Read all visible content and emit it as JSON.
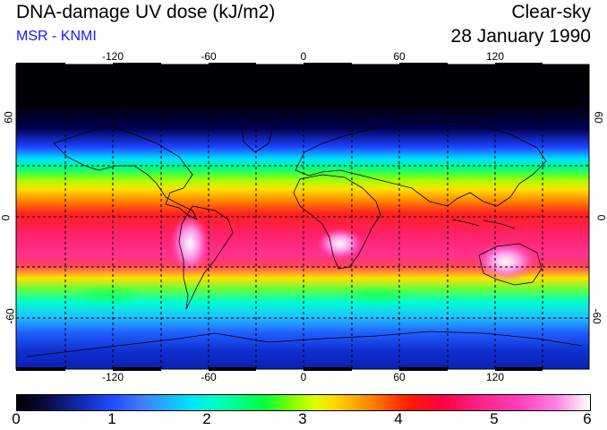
{
  "header": {
    "title": "DNA-damage UV dose (kJ/m2)",
    "subtitle": "MSR - KNMI",
    "sky_condition": "Clear-sky",
    "date": "28 January 1990"
  },
  "map": {
    "lon_ticks": [
      "-120",
      "-60",
      "0",
      "60",
      "120"
    ],
    "lat_ticks": [
      "60",
      "0",
      "-60"
    ]
  },
  "colorbar": {
    "labels": [
      "0",
      "1",
      "2",
      "3",
      "4",
      "5",
      "6"
    ]
  },
  "colors": {
    "subtitle": "#1a1aff"
  }
}
